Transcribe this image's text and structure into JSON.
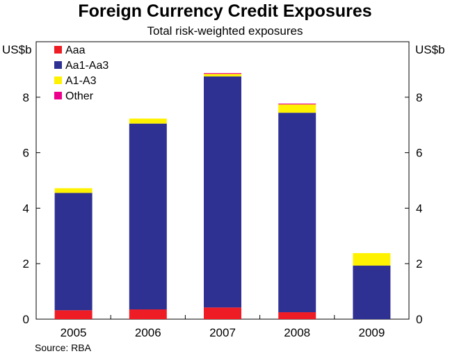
{
  "title": "Foreign Currency Credit Exposures",
  "subtitle": "Total risk-weighted exposures",
  "source": "Source: RBA",
  "chart_data": {
    "type": "bar",
    "stacked": true,
    "categories": [
      "2005",
      "2006",
      "2007",
      "2008",
      "2009"
    ],
    "series": [
      {
        "name": "Aaa",
        "color": "#ee1c25",
        "values": [
          0.32,
          0.35,
          0.42,
          0.25,
          0.0
        ]
      },
      {
        "name": "Aa1-Aa3",
        "color": "#2e3192",
        "values": [
          4.23,
          6.7,
          8.33,
          7.19,
          1.93
        ]
      },
      {
        "name": "A1-A3",
        "color": "#fff200",
        "values": [
          0.17,
          0.18,
          0.09,
          0.3,
          0.45
        ]
      },
      {
        "name": "Other",
        "color": "#ec008c",
        "values": [
          0.0,
          0.0,
          0.03,
          0.03,
          0.0
        ]
      }
    ],
    "ylabel_left": "US$b",
    "ylabel_right": "US$b",
    "ylim": [
      0,
      10
    ],
    "yticks": [
      0,
      2,
      4,
      6,
      8
    ],
    "grid": false,
    "legend_position": "top-left"
  }
}
